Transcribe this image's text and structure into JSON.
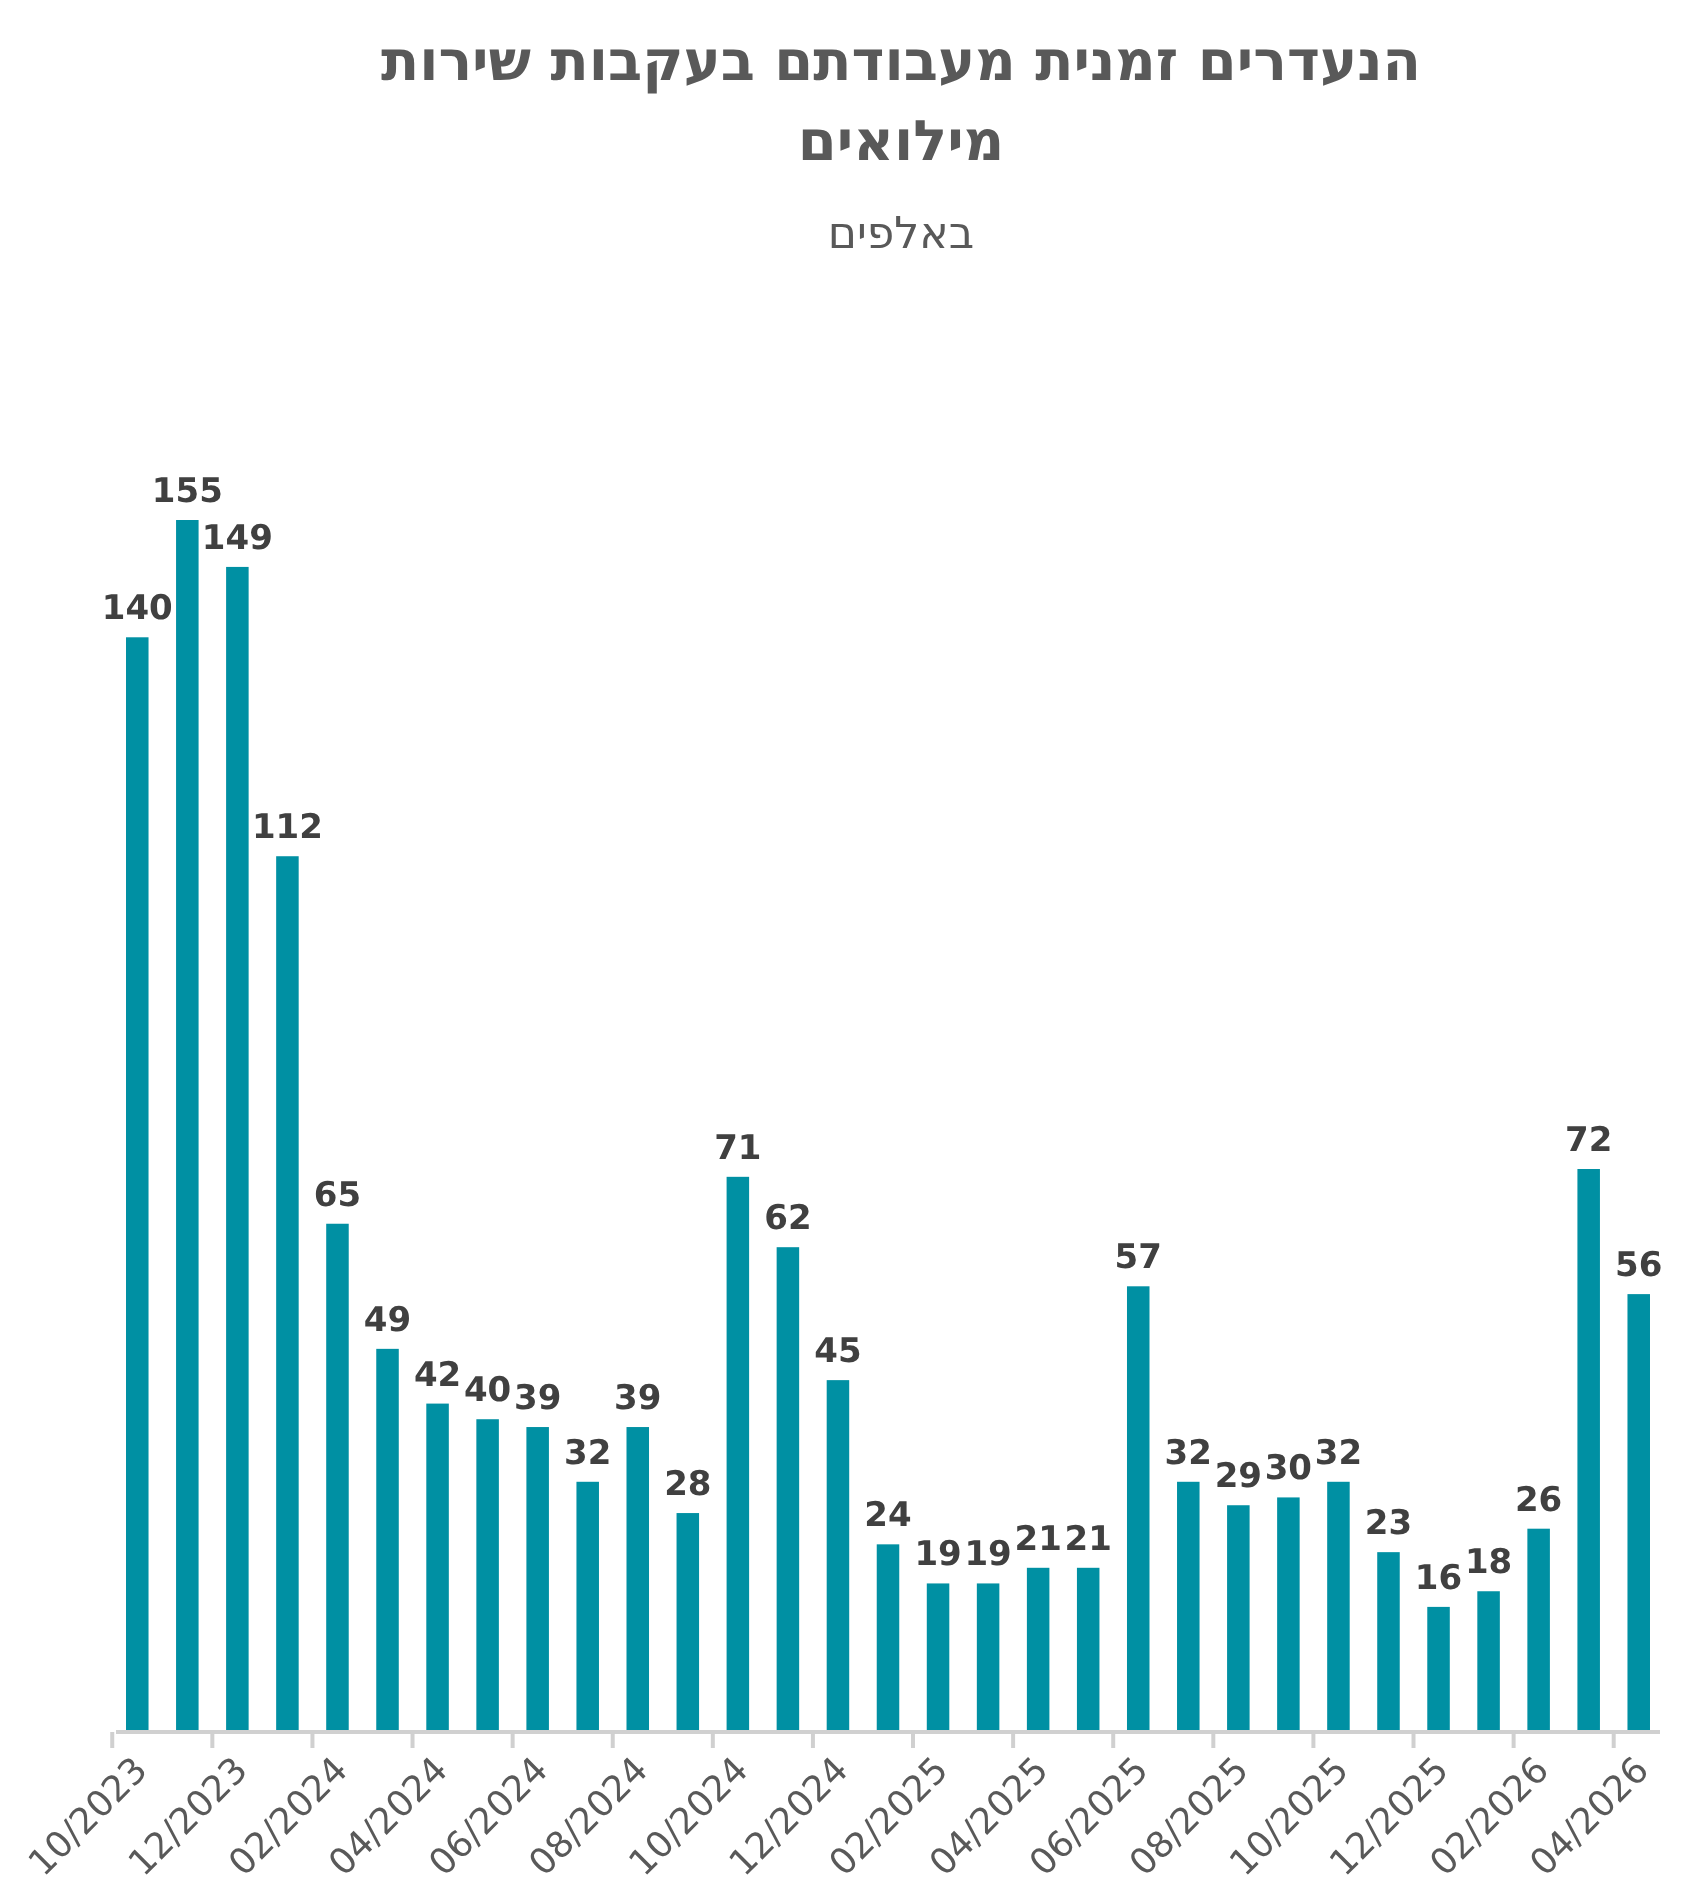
{
  "chart_data": {
    "type": "bar",
    "title": "הנעדרים זמנית מעבודתם בעקבות שירות מילואים",
    "subtitle": "באלפים",
    "categories": [
      "10/2023",
      null,
      "12/2023",
      null,
      "02/2024",
      null,
      "04/2024",
      null,
      "06/2024",
      null,
      "08/2024",
      null,
      "10/2024",
      null,
      "12/2024",
      null,
      "02/2025",
      null,
      "04/2025",
      null,
      "06/2025",
      null,
      "08/2025",
      null,
      "10/2025",
      null,
      "12/2025",
      null,
      "02/2026",
      null,
      "04/2026"
    ],
    "values": [
      140,
      155,
      149,
      112,
      65,
      49,
      42,
      40,
      39,
      32,
      39,
      28,
      71,
      62,
      45,
      24,
      19,
      19,
      21,
      21,
      57,
      32,
      29,
      30,
      32,
      23,
      16,
      18,
      26,
      72,
      56
    ],
    "color": "#0090a3",
    "data_labels": true
  }
}
